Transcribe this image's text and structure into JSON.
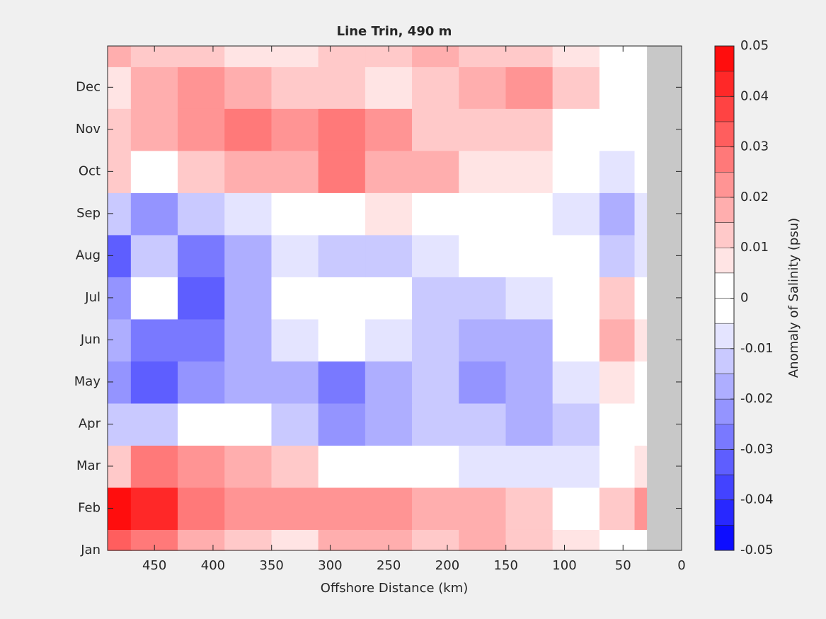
{
  "chart_data": {
    "type": "contour",
    "title": "Line Trin, 490 m",
    "xlabel": "Offshore Distance (km)",
    "colorbar_label": "Anomaly of Salinity (psu)",
    "x": [
      490,
      450,
      410,
      370,
      330,
      290,
      250,
      210,
      170,
      130,
      90,
      50,
      30
    ],
    "y": [
      1,
      2,
      3,
      4,
      5,
      6,
      7,
      8,
      9,
      10,
      11,
      12,
      12.98
    ],
    "z": [
      [
        0.03,
        0.025,
        0.015,
        0.01,
        0.005,
        0.015,
        0.015,
        0.01,
        0.015,
        0.01,
        0.005,
        0.0,
        0.0
      ],
      [
        0.045,
        0.04,
        0.025,
        0.02,
        0.02,
        0.02,
        0.02,
        0.015,
        0.015,
        0.01,
        0.003,
        0.01,
        0.02
      ],
      [
        0.01,
        0.025,
        0.02,
        0.015,
        0.01,
        0.003,
        0.002,
        0.0,
        -0.008,
        -0.01,
        -0.008,
        0.0,
        0.005
      ],
      [
        -0.012,
        -0.015,
        -0.005,
        -0.005,
        -0.015,
        -0.025,
        -0.02,
        -0.015,
        -0.015,
        -0.02,
        -0.012,
        0.0,
        0.0
      ],
      [
        -0.025,
        -0.035,
        -0.025,
        -0.02,
        -0.02,
        -0.03,
        -0.02,
        -0.015,
        -0.025,
        -0.02,
        -0.008,
        0.005,
        0.0
      ],
      [
        -0.02,
        -0.03,
        -0.03,
        -0.02,
        -0.01,
        -0.005,
        -0.01,
        -0.015,
        -0.02,
        -0.02,
        -0.005,
        0.015,
        0.005
      ],
      [
        -0.025,
        -0.005,
        -0.035,
        -0.02,
        -0.005,
        0.0,
        -0.005,
        -0.015,
        -0.015,
        -0.01,
        0.0,
        0.012,
        0.0
      ],
      [
        -0.035,
        -0.015,
        -0.03,
        -0.02,
        -0.01,
        -0.015,
        -0.015,
        -0.01,
        0.0,
        0.0,
        -0.005,
        -0.015,
        -0.01
      ],
      [
        -0.015,
        -0.025,
        -0.015,
        -0.008,
        0.0,
        0.003,
        0.005,
        0.003,
        0.0,
        0.0,
        -0.008,
        -0.02,
        -0.01
      ],
      [
        0.01,
        0.0,
        0.01,
        0.015,
        0.015,
        0.025,
        0.015,
        0.015,
        0.008,
        0.008,
        -0.005,
        -0.008,
        -0.005
      ],
      [
        0.01,
        0.015,
        0.02,
        0.025,
        0.02,
        0.025,
        0.02,
        0.012,
        0.01,
        0.01,
        0.0,
        -0.005,
        -0.005
      ],
      [
        0.005,
        0.015,
        0.02,
        0.015,
        0.012,
        0.01,
        0.008,
        0.012,
        0.015,
        0.02,
        0.01,
        0.0,
        -0.005
      ],
      [
        0.015,
        0.01,
        0.012,
        0.005,
        0.005,
        0.01,
        0.012,
        0.015,
        0.012,
        0.012,
        0.008,
        0.0,
        0.0
      ]
    ],
    "xlim": [
      490,
      0
    ],
    "ylim": [
      1,
      12.98
    ],
    "xticks": [
      450,
      400,
      350,
      300,
      250,
      200,
      150,
      100,
      50,
      0
    ],
    "yticks": [
      {
        "value": 1,
        "label": "Jan"
      },
      {
        "value": 2,
        "label": "Feb"
      },
      {
        "value": 3,
        "label": "Mar"
      },
      {
        "value": 4,
        "label": "Apr"
      },
      {
        "value": 5,
        "label": "May"
      },
      {
        "value": 6,
        "label": "Jun"
      },
      {
        "value": 7,
        "label": "Jul"
      },
      {
        "value": 8,
        "label": "Aug"
      },
      {
        "value": 9,
        "label": "Sep"
      },
      {
        "value": 10,
        "label": "Oct"
      },
      {
        "value": 11,
        "label": "Nov"
      },
      {
        "value": 12,
        "label": "Dec"
      }
    ],
    "clim": [
      -0.05,
      0.05
    ],
    "levels": 20,
    "cticks": [
      -0.05,
      -0.04,
      -0.03,
      -0.02,
      -0.01,
      0,
      0.01,
      0.02,
      0.03,
      0.04,
      0.05
    ],
    "cmap": [
      "#0000ff",
      "#ffffff",
      "#ff0000"
    ],
    "missing_color": "#c8c8c8"
  }
}
